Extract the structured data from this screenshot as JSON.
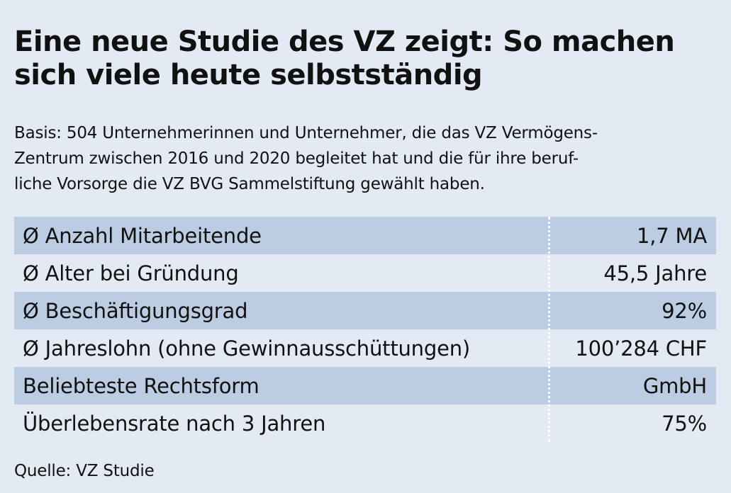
{
  "title_line1": "Eine neue Studie des VZ zeigt: So machen",
  "title_line2": "sich viele heute selbstständig",
  "basis_lines": [
    "Basis: 504 Unternehmerinnen und Unternehmer, die das VZ Vermögens-",
    "Zentrum zwischen 2016 und 2020 begleitet hat und die für ihre beruf-",
    "liche Vorsorge die VZ BVG Sammelstiftung gewählt haben."
  ],
  "chart_data": {
    "type": "table",
    "rows": [
      {
        "label": "Ø Anzahl Mitarbeitende",
        "value": "1,7 MA"
      },
      {
        "label": "Ø Alter bei Gründung",
        "value": "45,5 Jahre"
      },
      {
        "label": "Ø Beschäftigungsgrad",
        "value": "92%"
      },
      {
        "label": "Ø Jahreslohn (ohne Gewinnausschüttungen)",
        "value": "100’284 CHF"
      },
      {
        "label": "Beliebteste Rechtsform",
        "value": "GmbH"
      },
      {
        "label": "Überlebensrate nach 3 Jahren",
        "value": "75%"
      }
    ]
  },
  "source": "Quelle: VZ Studie",
  "colors": {
    "background": "#e4eaf4",
    "row_shade": "#bccde3",
    "divider": "#ffffff",
    "text": "#111111"
  }
}
